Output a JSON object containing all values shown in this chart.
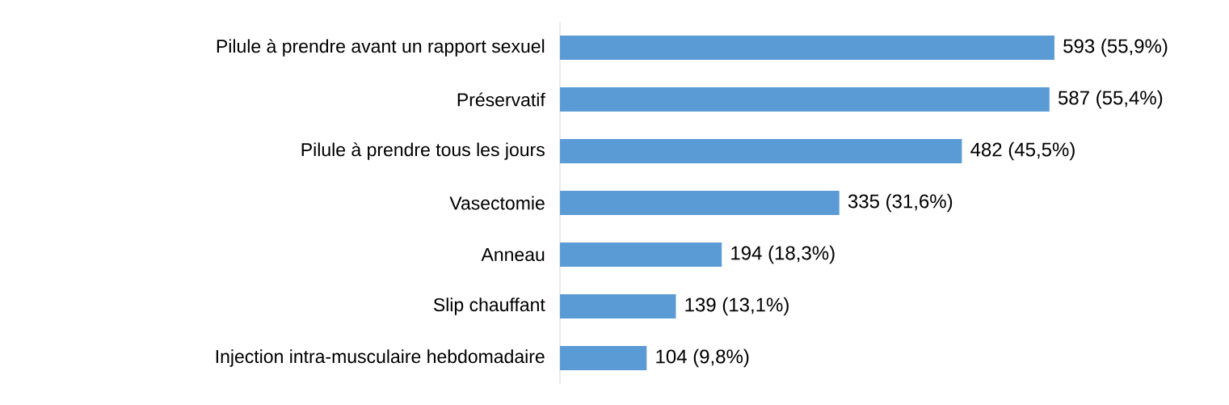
{
  "chart_data": {
    "type": "bar",
    "orientation": "horizontal",
    "categories": [
      "Pilule à prendre avant un rapport sexuel",
      "Préservatif",
      "Pilule à prendre tous les jours",
      "Vasectomie",
      "Anneau",
      "Slip chauffant",
      "Injection intra-musculaire hebdomadaire"
    ],
    "values": [
      593,
      587,
      482,
      335,
      194,
      139,
      104
    ],
    "value_labels": [
      "593 (55,9%)",
      "587 (55,4%)",
      "482 (45,5%)",
      "335 (31,6%)",
      "194 (18,3%)",
      "139 (13,1%)",
      "104 (9,8%)"
    ],
    "color": "#5b9bd5"
  }
}
